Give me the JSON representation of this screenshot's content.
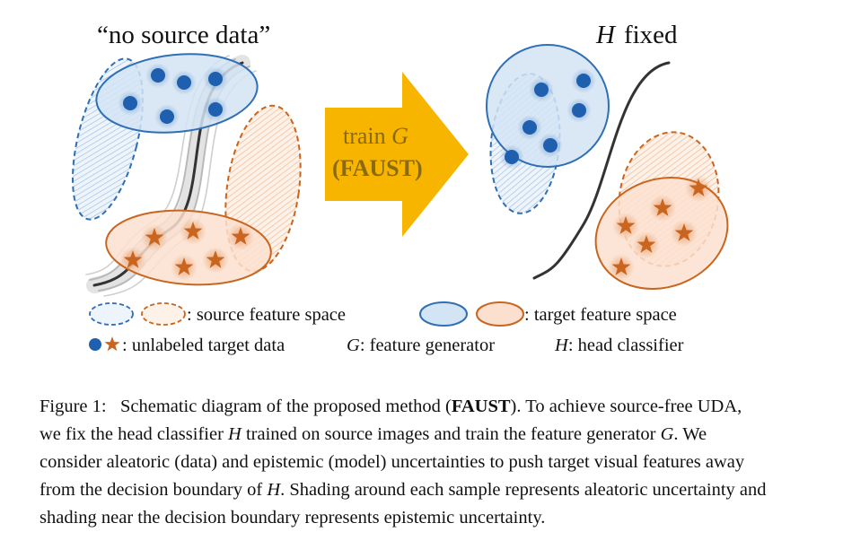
{
  "figure": {
    "left_title": "“no source data”",
    "right_title_var": "H",
    "right_title_rest": "fixed",
    "arrow_line1_text": "train ",
    "arrow_line1_var": "G",
    "arrow_line2": "(FAUST)",
    "legend": {
      "source_space": ": source feature space",
      "target_space": ": target feature space",
      "unlabeled": ": unlabeled target data",
      "g_var": "G",
      "g_text": ": feature generator",
      "h_var": "H",
      "h_text": ": head classifier"
    },
    "colors": {
      "blue_stroke": "#2e6fb5",
      "blue_fill": "#d3e4f5",
      "orange_stroke": "#c9651f",
      "orange_fill": "#fbe0cf",
      "arrow": "#f7b500",
      "arrow_text": "#8a6a10"
    }
  },
  "caption": {
    "label": "Figure 1:",
    "p1": "Schematic diagram of the proposed method (",
    "method": "FAUST",
    "p2": "). To achieve source-free UDA, we fix the head classifier ",
    "h1": "H",
    "p3": " trained on source images and train the feature generator ",
    "g1": "G",
    "p4": ". We consider aleatoric (data) and epistemic (model) uncertainties to push target visual features away from the decision boundary of ",
    "h2": "H",
    "p5": ". Shading around each sample represents aleatoric uncertainty and shading near the decision boundary represents epistemic uncertainty."
  }
}
